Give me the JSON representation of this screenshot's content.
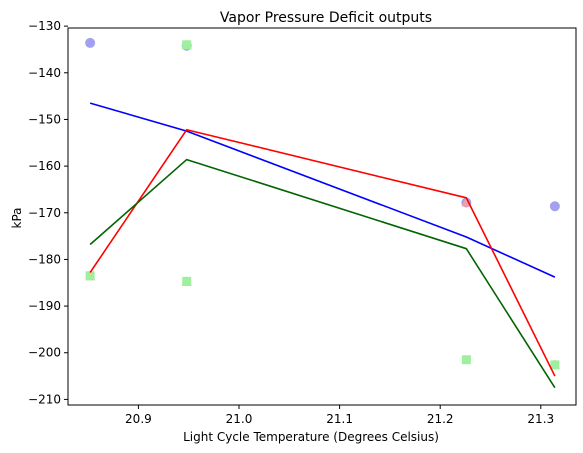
{
  "chart_data": {
    "type": "scatter",
    "title": "Vapor Pressure Deficit outputs",
    "xlabel": "Light Cycle Temperature (Degrees Celsius)",
    "ylabel": "kPa",
    "xlim": [
      20.83,
      21.335
    ],
    "ylim": [
      -211.2,
      -130.4
    ],
    "xticks": [
      20.9,
      21.0,
      21.1,
      21.2,
      21.3
    ],
    "xtick_labels": [
      "20.9",
      "21.0",
      "21.1",
      "21.2",
      "21.3"
    ],
    "yticks": [
      -130,
      -140,
      -150,
      -160,
      -170,
      -180,
      -190,
      -200,
      -210
    ],
    "ytick_labels": [
      "−130",
      "−140",
      "−150",
      "−160",
      "−170",
      "−180",
      "−190",
      "−200",
      "−210"
    ],
    "grid": false,
    "legend": "none",
    "series": [
      {
        "color": "#0000ff",
        "marker": "circle",
        "marker_color": "#a3a0ee",
        "points_x": [
          20.852,
          20.948,
          21.226,
          21.314
        ],
        "points_y": [
          -133.6,
          -134.2,
          -167.8,
          -168.6
        ],
        "fit_x": [
          20.852,
          20.948,
          21.226,
          21.314
        ],
        "fit_y": [
          -146.5,
          -152.5,
          -175.2,
          -183.8
        ]
      },
      {
        "color": "#ff0000",
        "marker": "triangle",
        "marker_color": "#f4a0a0",
        "points_x": [
          20.852,
          20.948,
          20.948,
          21.226,
          21.314
        ],
        "points_y": [
          -183.6,
          -134.1,
          -184.8,
          -167.8,
          -202.6
        ],
        "fit_x": [
          20.852,
          20.948,
          21.226,
          21.314
        ],
        "fit_y": [
          -182.8,
          -152.2,
          -166.8,
          -205.0
        ]
      },
      {
        "color": "#006400",
        "marker": "square",
        "marker_color": "#9ef09e",
        "points_x": [
          20.852,
          20.948,
          20.948,
          21.226,
          21.314
        ],
        "points_y": [
          -183.5,
          -134.0,
          -184.7,
          -201.5,
          -202.6
        ],
        "fit_x": [
          20.852,
          20.948,
          21.226,
          21.314
        ],
        "fit_y": [
          -176.8,
          -158.6,
          -177.7,
          -207.5
        ]
      }
    ]
  }
}
